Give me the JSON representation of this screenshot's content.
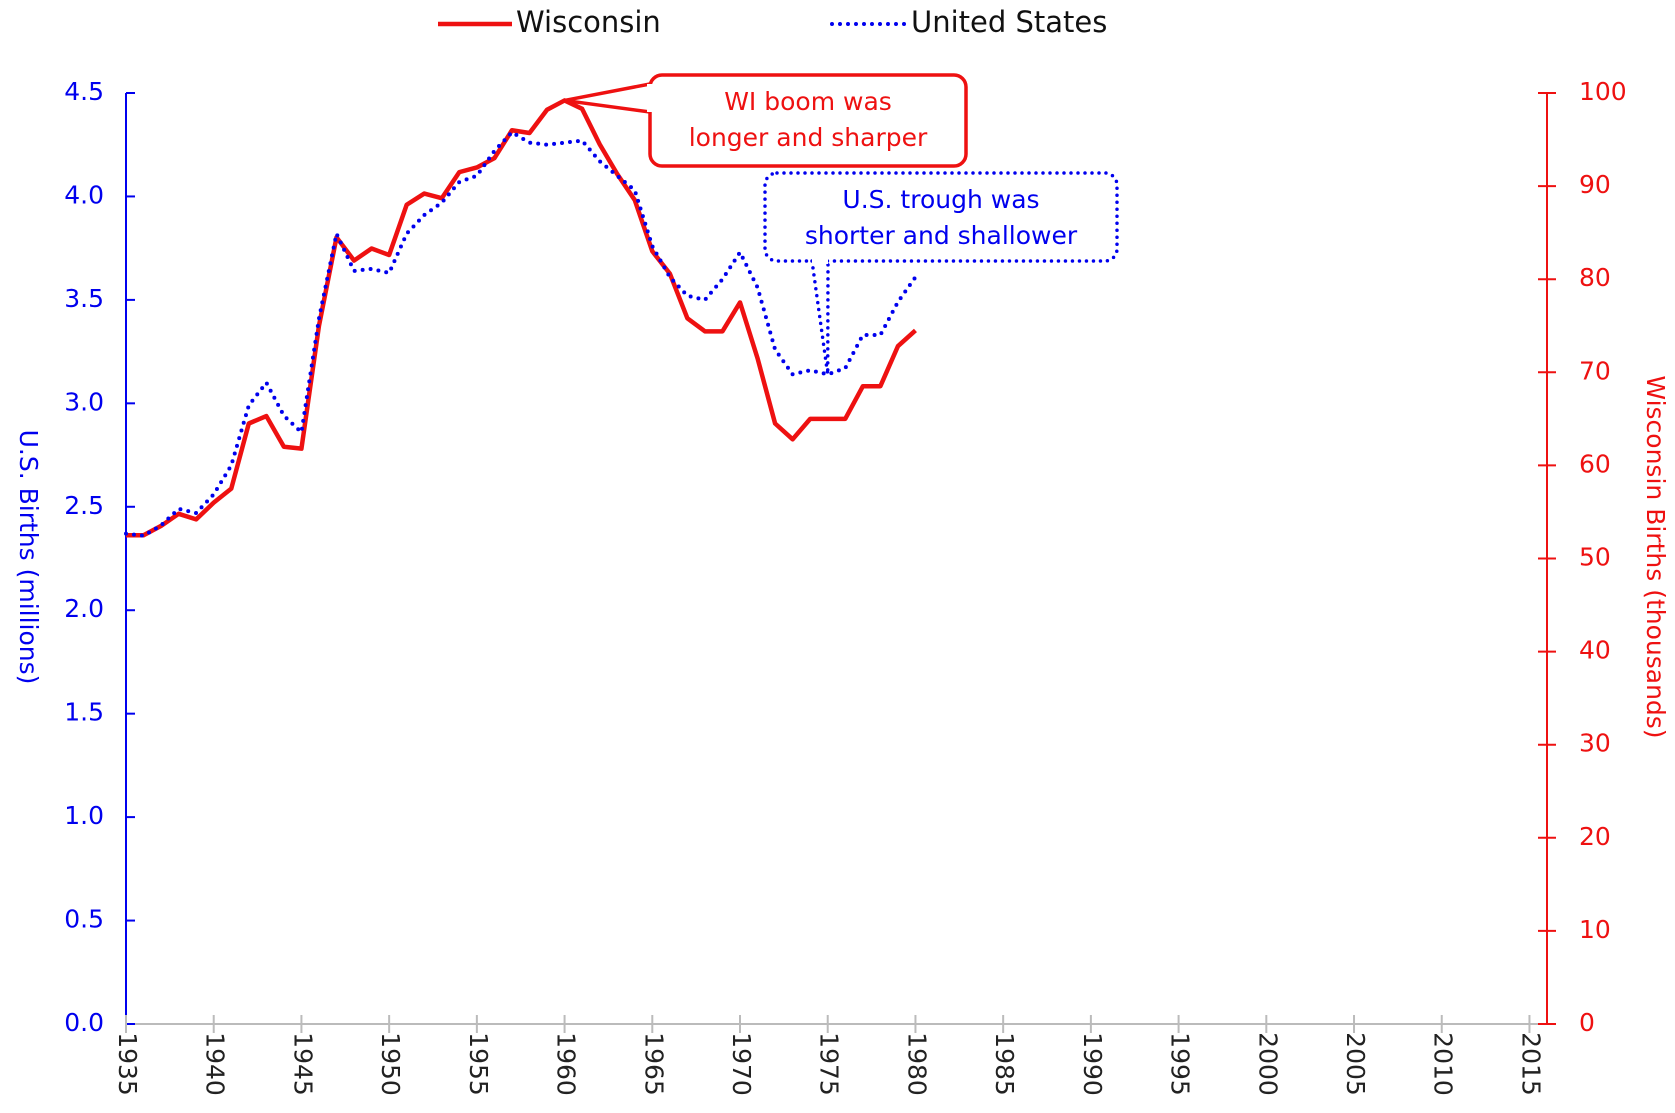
{
  "chart_data": {
    "type": "line",
    "x": [
      1935,
      1936,
      1937,
      1938,
      1939,
      1940,
      1941,
      1942,
      1943,
      1944,
      1945,
      1946,
      1947,
      1948,
      1949,
      1950,
      1951,
      1952,
      1953,
      1954,
      1955,
      1956,
      1957,
      1958,
      1959,
      1960,
      1961,
      1962,
      1963,
      1964,
      1965,
      1966,
      1967,
      1968,
      1969,
      1970,
      1971,
      1972,
      1973,
      1974,
      1975,
      1976,
      1977,
      1978,
      1979,
      1980
    ],
    "series": [
      {
        "name": "Wisconsin",
        "color": "#ee1111",
        "axis": "y2",
        "dash": "solid",
        "values": [
          52.5,
          52.5,
          53.5,
          54.8,
          54.2,
          56,
          57.5,
          64.5,
          65.3,
          62,
          61.8,
          75,
          84.5,
          82,
          83.3,
          82.6,
          88,
          89.2,
          88.7,
          91.5,
          92,
          93,
          96,
          95.7,
          98.2,
          99.2,
          98.3,
          94.5,
          91.3,
          88.5,
          83,
          80.6,
          75.8,
          74.4,
          74.4,
          77.5,
          71.5,
          64.5,
          62.8,
          65,
          65,
          65,
          68.5,
          68.5,
          72.8,
          74.5
        ]
      },
      {
        "name": "United States",
        "color": "#0000ee",
        "dash": "dotted",
        "values": [
          2.37,
          2.36,
          2.41,
          2.49,
          2.47,
          2.56,
          2.7,
          2.99,
          3.1,
          2.94,
          2.86,
          3.41,
          3.82,
          3.64,
          3.65,
          3.63,
          3.82,
          3.91,
          3.97,
          4.07,
          4.1,
          4.22,
          4.31,
          4.26,
          4.25,
          4.26,
          4.27,
          4.17,
          4.1,
          4.03,
          3.76,
          3.61,
          3.52,
          3.5,
          3.6,
          3.73,
          3.56,
          3.26,
          3.14,
          3.16,
          3.14,
          3.17,
          3.33,
          3.33,
          3.49,
          3.61
        ]
      }
    ],
    "xlim": [
      1935,
      2016
    ],
    "xticks": [
      1935,
      1940,
      1945,
      1950,
      1955,
      1960,
      1965,
      1970,
      1975,
      1980,
      1985,
      1990,
      1995,
      2000,
      2005,
      2010,
      2015
    ],
    "ylim": [
      0,
      4.5
    ],
    "yticks": [
      {
        "value": 0,
        "label": "0.0"
      },
      0.5,
      {
        "value": 1,
        "label": "1.0"
      },
      1.5,
      {
        "value": 2,
        "label": "2.0"
      },
      2.5,
      {
        "value": 3,
        "label": "3.0"
      },
      3.5,
      {
        "value": 4,
        "label": "4.0"
      },
      4.5
    ],
    "y2lim": [
      0,
      100
    ],
    "y2ticks": [
      0,
      10,
      20,
      30,
      40,
      50,
      60,
      70,
      80,
      90,
      100
    ],
    "ylabel": "U.S. Births (millions)",
    "y2label": "Wisconsin Births (thousands)",
    "legend": "top",
    "annotations": [
      {
        "text": [
          "WI boom was",
          "longer and sharper"
        ],
        "color": "#ee1111"
      },
      {
        "text": [
          "U.S. trough was",
          "shorter and shallower"
        ],
        "color": "#0000ee"
      }
    ]
  }
}
